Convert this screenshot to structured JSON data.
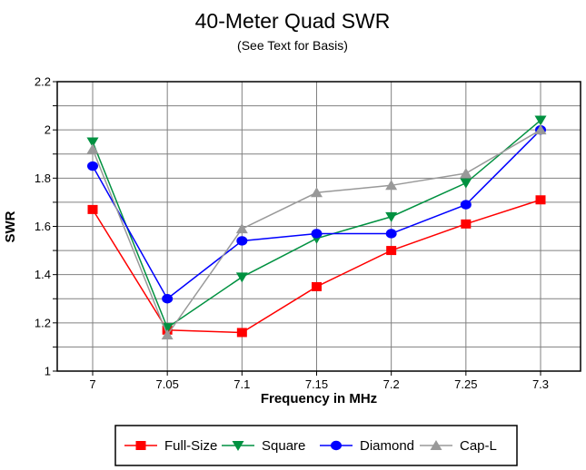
{
  "chart_data": {
    "type": "line",
    "title": "40-Meter Quad SWR",
    "subtitle": "(See Text for Basis)",
    "xlabel": "Frequency in MHz",
    "ylabel": "SWR",
    "x": [
      7,
      7.05,
      7.1,
      7.15,
      7.2,
      7.25,
      7.3
    ],
    "x_tick_labels": [
      "7",
      "7.05",
      "7.1",
      "7.15",
      "7.2",
      "7.25",
      "7.3"
    ],
    "ylim": [
      1,
      2.2
    ],
    "y_minor_step": 0.1,
    "y_tick_values": [
      2.2,
      2,
      1.8,
      1.6,
      1.4,
      1.2,
      1
    ],
    "y_tick_labels": [
      "2.2",
      "2",
      "1.8",
      "1.6",
      "1.4",
      "1.2",
      "1"
    ],
    "grid": true,
    "legend_position": "bottom",
    "series": [
      {
        "name": "Full-Size",
        "marker": "square",
        "color": "#ff0000",
        "values": [
          1.67,
          1.17,
          1.16,
          1.35,
          1.5,
          1.61,
          1.71
        ]
      },
      {
        "name": "Square",
        "marker": "triangle-down",
        "color": "#009140",
        "values": [
          1.95,
          1.18,
          1.39,
          1.55,
          1.64,
          1.78,
          2.04
        ]
      },
      {
        "name": "Diamond",
        "marker": "circle",
        "color": "#0000ff",
        "values": [
          1.85,
          1.3,
          1.54,
          1.57,
          1.57,
          1.69,
          2.0
        ]
      },
      {
        "name": "Cap-L",
        "marker": "triangle-up",
        "color": "#999999",
        "values": [
          1.92,
          1.15,
          1.59,
          1.74,
          1.77,
          1.82,
          2.0
        ]
      }
    ]
  },
  "colors": {
    "background": "#ffffff",
    "gridline": "#808080",
    "axis": "#000000",
    "legend_border": "#000000"
  }
}
